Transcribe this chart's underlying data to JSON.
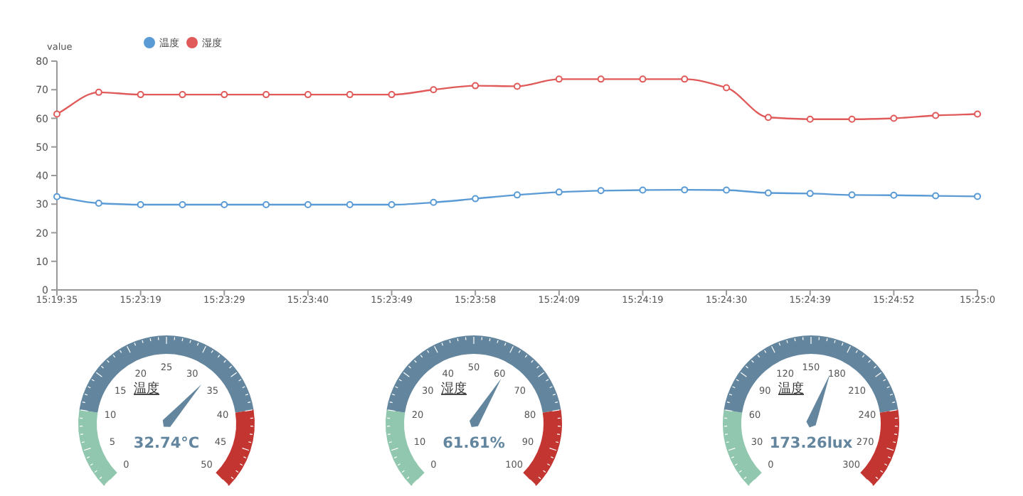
{
  "chart_data": [
    {
      "type": "line",
      "ylabel": "value",
      "legend": "top left",
      "marker": "circle",
      "ylim": [
        0,
        80
      ],
      "yticks": [
        0,
        10,
        20,
        30,
        40,
        50,
        60,
        70,
        80
      ],
      "categories": [
        "15:19:35",
        null,
        "15:23:19",
        null,
        "15:23:29",
        null,
        "15:23:40",
        null,
        "15:23:49",
        null,
        "15:23:58",
        null,
        "15:24:09",
        null,
        "15:24:19",
        null,
        "15:24:30",
        null,
        "15:24:39",
        null,
        "15:24:52",
        null,
        "15:25:0"
      ],
      "series": [
        {
          "name": "温度",
          "color": "#5b9bd5",
          "values": [
            32.6,
            30.3,
            29.8,
            29.8,
            29.8,
            29.8,
            29.8,
            29.8,
            29.8,
            30.6,
            31.9,
            33.2,
            34.2,
            34.7,
            34.9,
            35,
            34.9,
            33.9,
            33.7,
            33.2,
            33.1,
            32.9,
            32.7
          ]
        },
        {
          "name": "湿度",
          "color": "#e05a5a",
          "values": [
            61.5,
            69.1,
            68.3,
            68.3,
            68.3,
            68.3,
            68.3,
            68.3,
            68.3,
            70,
            71.4,
            71.2,
            73.7,
            73.7,
            73.7,
            73.7,
            70.7,
            60.3,
            59.7,
            59.7,
            60,
            61,
            61.5
          ]
        }
      ]
    },
    {
      "type": "other",
      "title": "温度",
      "colors": [
        "#91c7ae",
        "#63869e",
        "#c23531"
      ],
      "annotations": [
        "0",
        "5",
        "10",
        "15",
        "20",
        "25",
        "30",
        "35",
        "40",
        "45",
        "50",
        "32.74°C"
      ]
    },
    {
      "type": "other",
      "title": "湿度",
      "colors": [
        "#91c7ae",
        "#63869e",
        "#c23531"
      ],
      "annotations": [
        "0",
        "10",
        "20",
        "30",
        "40",
        "50",
        "60",
        "70",
        "80",
        "90",
        "100",
        "61.61%"
      ]
    },
    {
      "type": "other",
      "title": "温度",
      "colors": [
        "#91c7ae",
        "#63869e",
        "#c23531"
      ],
      "annotations": [
        "0",
        "30",
        "60",
        "90",
        "120",
        "150",
        "180",
        "210",
        "240",
        "270",
        "300",
        "173.26lux"
      ]
    }
  ]
}
